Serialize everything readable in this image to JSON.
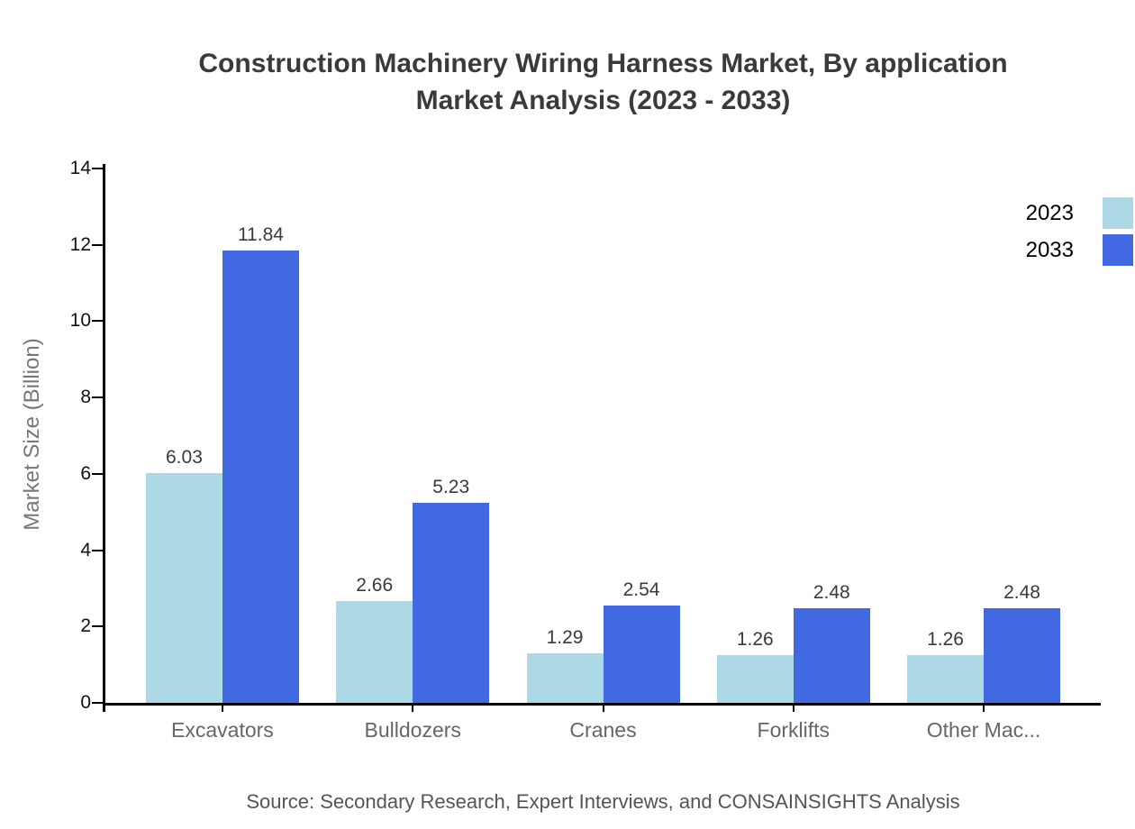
{
  "title": {
    "line1": "Construction Machinery Wiring Harness Market, By application",
    "line2": "Market Analysis (2023 - 2033)"
  },
  "source": "Source: Secondary Research, Expert Interviews, and CONSAINSIGHTS Analysis",
  "chart_data": {
    "type": "bar",
    "categories": [
      "Excavators",
      "Bulldozers",
      "Cranes",
      "Forklifts",
      "Other Mac..."
    ],
    "series": [
      {
        "name": "2023",
        "color": "#ADD8E6",
        "values": [
          6.03,
          2.66,
          1.29,
          1.26,
          1.26
        ]
      },
      {
        "name": "2033",
        "color": "#4169E1",
        "values": [
          11.84,
          5.23,
          2.54,
          2.48,
          2.48
        ]
      }
    ],
    "value_labels": [
      "6.03",
      "11.84",
      "2.66",
      "5.23",
      "1.29",
      "2.54",
      "1.26",
      "2.48",
      "1.26",
      "2.48"
    ],
    "title": "Construction Machinery Wiring Harness Market, By application Market Analysis (2023 - 2033)",
    "xlabel": "",
    "ylabel": "Market Size (Billion)",
    "ylim": [
      0,
      14
    ],
    "yticks": [
      0,
      2,
      4,
      6,
      8,
      10,
      12,
      14
    ],
    "grid": false,
    "legend_position": "top-right",
    "axis_color": "#000000",
    "tick_label_color": "#111111",
    "category_label_color": "#666666",
    "value_label_color": "#3a3a3a",
    "title_color": "#3a3a3a",
    "source_color": "#555555"
  }
}
